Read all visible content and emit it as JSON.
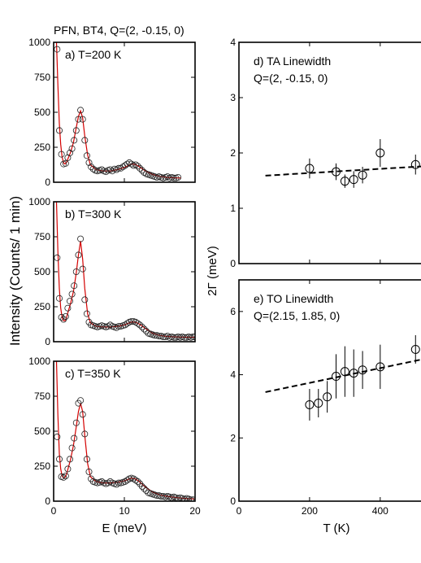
{
  "figure": {
    "title": "PFN, BT4, Q=(2, -0.15, 0)",
    "left_ylabel": "Intensity (Counts/ 1 min)",
    "left_xlabel": "E (meV)",
    "right_ylabel": "2Γ (meV)",
    "right_xlabel": "T (K)"
  },
  "chart_data": [
    {
      "id": "a",
      "type": "scatter",
      "annotation": "a) T=200 K",
      "xlim": [
        0,
        20
      ],
      "ylim": [
        0,
        1000
      ],
      "xticks": [
        0,
        10,
        20
      ],
      "yticks": [
        0,
        250,
        500,
        750,
        1000
      ],
      "show_xticklabels": false,
      "series": [
        {
          "kind": "points",
          "x": [
            0.5,
            0.8,
            1.1,
            1.4,
            1.7,
            2.0,
            2.3,
            2.6,
            2.9,
            3.2,
            3.5,
            3.8,
            4.1,
            4.4,
            4.7,
            5.0,
            5.3,
            5.6,
            5.9,
            6.2,
            6.5,
            6.8,
            7.1,
            7.4,
            7.7,
            8.0,
            8.3,
            8.6,
            8.9,
            9.2,
            9.5,
            9.8,
            10.1,
            10.4,
            10.7,
            11.0,
            11.3,
            11.6,
            11.9,
            12.2,
            12.5,
            12.8,
            13.1,
            13.4,
            13.7,
            14.0,
            14.3,
            14.6,
            14.9,
            15.2,
            15.5,
            15.8,
            16.1,
            16.4,
            16.7,
            17.0,
            17.3,
            17.6
          ],
          "y": [
            950,
            370,
            200,
            130,
            135,
            175,
            210,
            240,
            300,
            370,
            450,
            515,
            450,
            300,
            190,
            140,
            110,
            95,
            85,
            80,
            85,
            90,
            80,
            75,
            85,
            90,
            80,
            95,
            90,
            100,
            100,
            110,
            120,
            130,
            140,
            130,
            120,
            125,
            115,
            100,
            85,
            70,
            60,
            55,
            50,
            45,
            40,
            35,
            40,
            35,
            30,
            35,
            40,
            30,
            35,
            30,
            30,
            35
          ]
        },
        {
          "kind": "fit",
          "x": [
            0.4,
            0.6,
            0.8,
            1.0,
            1.2,
            1.4,
            1.6,
            1.8,
            2.0,
            2.4,
            2.8,
            3.2,
            3.5,
            3.8,
            4.1,
            4.4,
            4.8,
            5.2,
            6.0,
            7.0,
            8.0,
            9.0,
            10.0,
            10.5,
            11.0,
            11.5,
            12.0,
            13.0,
            14.0,
            15.0,
            16.0,
            17.0,
            18.0
          ],
          "y": [
            1000,
            700,
            420,
            270,
            180,
            140,
            130,
            140,
            165,
            215,
            285,
            390,
            470,
            510,
            460,
            330,
            195,
            125,
            90,
            80,
            80,
            90,
            105,
            118,
            130,
            128,
            115,
            80,
            55,
            42,
            35,
            32,
            30
          ]
        }
      ]
    },
    {
      "id": "b",
      "type": "scatter",
      "annotation": "b) T=300 K",
      "xlim": [
        0,
        20
      ],
      "ylim": [
        0,
        1000
      ],
      "xticks": [
        0,
        10,
        20
      ],
      "yticks": [
        0,
        250,
        500,
        750,
        1000
      ],
      "show_xticklabels": false,
      "series": [
        {
          "kind": "points",
          "x": [
            0.5,
            0.8,
            1.1,
            1.4,
            1.7,
            2.0,
            2.3,
            2.6,
            2.9,
            3.2,
            3.5,
            3.8,
            4.1,
            4.4,
            4.7,
            5.0,
            5.3,
            5.6,
            5.9,
            6.2,
            6.5,
            6.8,
            7.1,
            7.4,
            7.7,
            8.0,
            8.3,
            8.6,
            8.9,
            9.2,
            9.5,
            9.8,
            10.1,
            10.4,
            10.7,
            11.0,
            11.3,
            11.6,
            11.9,
            12.2,
            12.5,
            12.8,
            13.1,
            13.4,
            13.7,
            14.0,
            14.3,
            14.6,
            14.9,
            15.2,
            15.5,
            15.8,
            16.1,
            16.4,
            16.7,
            17.0,
            17.3,
            17.6,
            17.9,
            18.2,
            18.5,
            18.8,
            19.1,
            19.4,
            19.7,
            20.0
          ],
          "y": [
            600,
            310,
            175,
            160,
            180,
            240,
            290,
            340,
            400,
            500,
            620,
            735,
            520,
            300,
            200,
            140,
            120,
            115,
            110,
            105,
            110,
            115,
            110,
            105,
            110,
            120,
            110,
            105,
            100,
            110,
            110,
            115,
            120,
            130,
            140,
            145,
            145,
            140,
            130,
            120,
            105,
            90,
            75,
            60,
            55,
            50,
            45,
            45,
            40,
            40,
            35,
            35,
            40,
            30,
            35,
            30,
            30,
            35,
            30,
            35,
            30,
            30,
            35,
            30,
            35,
            35
          ]
        },
        {
          "kind": "fit",
          "x": [
            0.4,
            0.6,
            0.8,
            1.0,
            1.2,
            1.4,
            1.6,
            1.8,
            2.0,
            2.4,
            2.8,
            3.2,
            3.5,
            3.8,
            4.1,
            4.4,
            4.8,
            5.2,
            6.0,
            7.0,
            8.0,
            9.0,
            10.0,
            10.5,
            11.0,
            11.5,
            12.0,
            13.0,
            14.0,
            15.0,
            16.0,
            17.0,
            18.0,
            19.0,
            20.0
          ],
          "y": [
            1000,
            650,
            380,
            240,
            175,
            150,
            150,
            170,
            205,
            275,
            360,
            490,
            620,
            720,
            590,
            380,
            200,
            135,
            110,
            105,
            105,
            110,
            120,
            130,
            140,
            140,
            130,
            95,
            60,
            45,
            38,
            35,
            33,
            32,
            32
          ]
        }
      ]
    },
    {
      "id": "c",
      "type": "scatter",
      "annotation": "c) T=350 K",
      "xlim": [
        0,
        20
      ],
      "ylim": [
        0,
        1000
      ],
      "xticks": [
        0,
        10,
        20
      ],
      "yticks": [
        0,
        250,
        500,
        750,
        1000
      ],
      "show_xticklabels": true,
      "series": [
        {
          "kind": "points",
          "x": [
            0.5,
            0.8,
            1.1,
            1.4,
            1.7,
            2.0,
            2.3,
            2.6,
            2.9,
            3.2,
            3.5,
            3.8,
            4.1,
            4.4,
            4.7,
            5.0,
            5.3,
            5.6,
            5.9,
            6.2,
            6.5,
            6.8,
            7.1,
            7.4,
            7.7,
            8.0,
            8.3,
            8.6,
            8.9,
            9.2,
            9.5,
            9.8,
            10.1,
            10.4,
            10.7,
            11.0,
            11.3,
            11.6,
            11.9,
            12.2,
            12.5,
            12.8,
            13.1,
            13.4,
            13.7,
            14.0,
            14.3,
            14.6,
            14.9,
            15.2,
            15.5,
            15.8,
            16.1,
            16.4,
            16.7,
            17.0,
            17.3,
            17.6,
            17.9,
            18.2,
            18.5,
            18.8,
            19.1,
            19.4,
            19.7
          ],
          "y": [
            460,
            300,
            175,
            170,
            180,
            230,
            300,
            380,
            450,
            560,
            700,
            720,
            620,
            480,
            300,
            210,
            160,
            140,
            135,
            130,
            135,
            140,
            130,
            125,
            130,
            140,
            130,
            125,
            120,
            130,
            130,
            135,
            140,
            150,
            160,
            165,
            160,
            150,
            140,
            125,
            105,
            90,
            75,
            60,
            55,
            50,
            45,
            40,
            40,
            35,
            35,
            30,
            35,
            30,
            25,
            30,
            25,
            20,
            25,
            20,
            15,
            20,
            15,
            10,
            10
          ]
        },
        {
          "kind": "fit",
          "x": [
            0.4,
            0.6,
            0.8,
            1.0,
            1.2,
            1.4,
            1.6,
            1.8,
            2.0,
            2.4,
            2.8,
            3.2,
            3.5,
            3.8,
            4.1,
            4.4,
            4.8,
            5.2,
            6.0,
            7.0,
            8.0,
            9.0,
            10.0,
            10.5,
            11.0,
            11.5,
            12.0,
            13.0,
            14.0,
            15.0,
            16.0,
            17.0,
            18.0,
            19.0,
            20.0
          ],
          "y": [
            1000,
            620,
            340,
            230,
            180,
            165,
            170,
            190,
            225,
            300,
            400,
            530,
            640,
            700,
            640,
            470,
            270,
            175,
            140,
            130,
            130,
            135,
            145,
            155,
            165,
            160,
            145,
            100,
            65,
            45,
            35,
            28,
            22,
            18,
            15
          ]
        }
      ]
    },
    {
      "id": "d",
      "type": "scatter",
      "annotation_lines": [
        "d) TA Linewidth",
        "Q=(2, -0.15, 0)"
      ],
      "xlim": [
        0,
        550
      ],
      "ylim": [
        0,
        4
      ],
      "xticks": [
        0,
        200,
        400
      ],
      "yticks": [
        0,
        1,
        2,
        3,
        4
      ],
      "show_xticklabels": false,
      "points": [
        {
          "x": 200,
          "y": 1.72,
          "err": 0.18
        },
        {
          "x": 275,
          "y": 1.66,
          "err": 0.15
        },
        {
          "x": 300,
          "y": 1.49,
          "err": 0.12
        },
        {
          "x": 325,
          "y": 1.52,
          "err": 0.15
        },
        {
          "x": 350,
          "y": 1.6,
          "err": 0.15
        },
        {
          "x": 400,
          "y": 2.0,
          "err": 0.25
        },
        {
          "x": 500,
          "y": 1.79,
          "err": 0.18
        }
      ],
      "trend": {
        "x": [
          75,
          525
        ],
        "y": [
          1.59,
          1.76
        ]
      }
    },
    {
      "id": "e",
      "type": "scatter",
      "annotation_lines": [
        "e) TO Linewidth",
        "Q=(2.15, 1.85, 0)"
      ],
      "xlim": [
        0,
        550
      ],
      "ylim": [
        0,
        7
      ],
      "xticks": [
        0,
        200,
        400
      ],
      "yticks": [
        0,
        2,
        4,
        6
      ],
      "show_xticklabels": true,
      "points": [
        {
          "x": 200,
          "y": 3.05,
          "err": 0.5
        },
        {
          "x": 225,
          "y": 3.1,
          "err": 0.45
        },
        {
          "x": 250,
          "y": 3.3,
          "err": 0.5
        },
        {
          "x": 275,
          "y": 3.95,
          "err": 0.7
        },
        {
          "x": 300,
          "y": 4.1,
          "err": 0.8
        },
        {
          "x": 325,
          "y": 4.05,
          "err": 0.75
        },
        {
          "x": 350,
          "y": 4.15,
          "err": 0.6
        },
        {
          "x": 400,
          "y": 4.25,
          "err": 0.7
        },
        {
          "x": 500,
          "y": 4.8,
          "err": 0.45
        }
      ],
      "trend": {
        "x": [
          75,
          525
        ],
        "y": [
          3.45,
          4.5
        ]
      }
    }
  ]
}
